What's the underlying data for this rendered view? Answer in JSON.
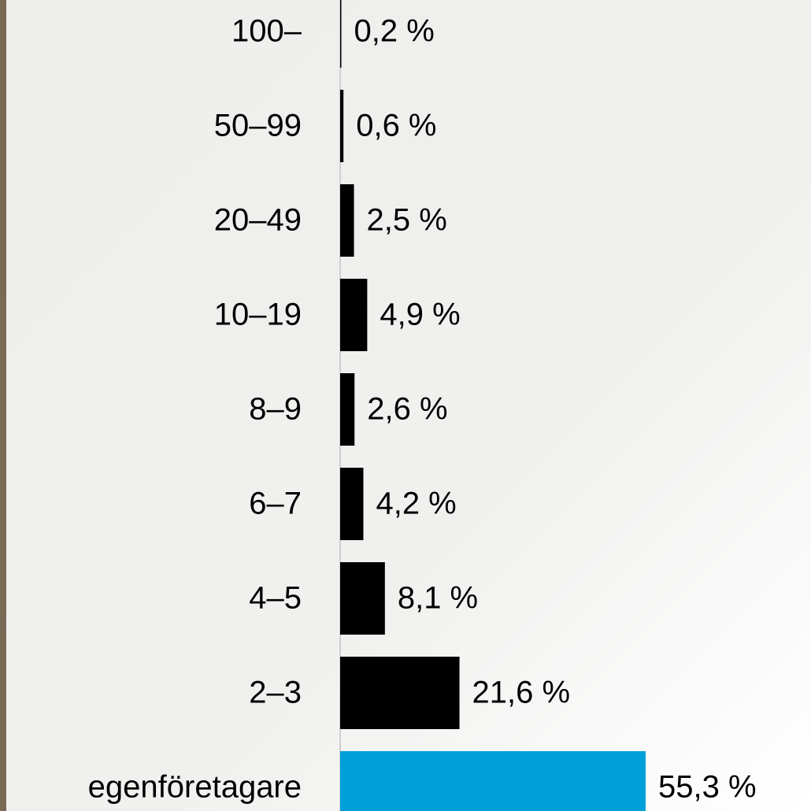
{
  "chart_data": {
    "type": "bar",
    "orientation": "horizontal",
    "categories": [
      "100–",
      "50–99",
      "20–49",
      "10–19",
      "8–9",
      "6–7",
      "4–5",
      "2–3",
      "egenföretagare"
    ],
    "values": [
      0.2,
      0.6,
      2.5,
      4.9,
      2.6,
      4.2,
      8.1,
      21.6,
      55.3
    ],
    "value_labels": [
      "0,2 %",
      "0,6 %",
      "2,5 %",
      "4,9 %",
      "2,6 %",
      "4,2 %",
      "8,1 %",
      "21,6 %",
      "55,3 %"
    ],
    "colors": [
      "#000000",
      "#000000",
      "#000000",
      "#000000",
      "#000000",
      "#000000",
      "#000000",
      "#000000",
      "#009fda"
    ]
  }
}
